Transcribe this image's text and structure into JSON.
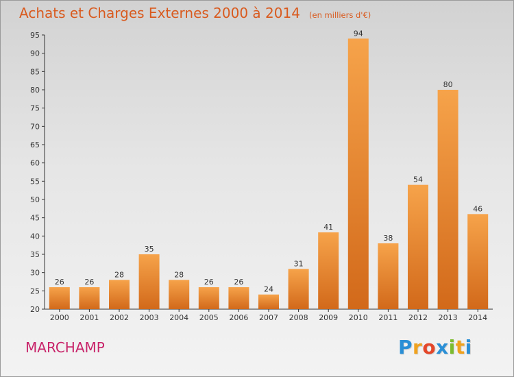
{
  "chart_data": {
    "type": "bar",
    "title": "Achats et Charges Externes 2000 à 2014",
    "subtitle": "(en milliers d'€)",
    "categories": [
      "2000",
      "2001",
      "2002",
      "2003",
      "2004",
      "2005",
      "2006",
      "2007",
      "2008",
      "2009",
      "2010",
      "2011",
      "2012",
      "2013",
      "2014"
    ],
    "values": [
      26,
      26,
      28,
      35,
      28,
      26,
      26,
      24,
      31,
      41,
      94,
      38,
      54,
      80,
      46
    ],
    "ylim": [
      20,
      95
    ],
    "yticks": [
      20,
      25,
      30,
      35,
      40,
      45,
      50,
      55,
      60,
      65,
      70,
      75,
      80,
      85,
      90,
      95
    ],
    "xlabel": "",
    "ylabel": "",
    "grid": false,
    "bar_color": "#f28f2c",
    "bar_color_dark": "#d2691a"
  },
  "commune": "MARCHAMP",
  "logo": {
    "letters": [
      "P",
      "r",
      "o",
      "x",
      "i",
      "t",
      "i"
    ],
    "colors": [
      "#2a8fd6",
      "#f0a21e",
      "#e4472a",
      "#2a8fd6",
      "#7cbb2e",
      "#f0a21e",
      "#2a8fd6"
    ]
  }
}
